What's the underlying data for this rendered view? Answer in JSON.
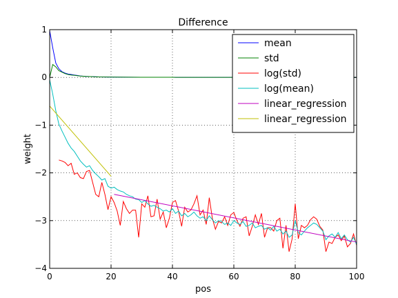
{
  "chart_data": {
    "type": "line",
    "title": "Difference",
    "xlabel": "pos",
    "ylabel": "weight",
    "xlim": [
      0,
      100
    ],
    "ylim": [
      -4,
      1
    ],
    "xticks": [
      0,
      20,
      40,
      60,
      80,
      100
    ],
    "yticks": [
      -4,
      -3,
      -2,
      -1,
      0,
      1
    ],
    "grid": true,
    "legend_position": "top-right",
    "series": [
      {
        "name": "mean",
        "color": "#0000ff",
        "points": [
          [
            0,
            0.98
          ],
          [
            1,
            0.62
          ],
          [
            2,
            0.3
          ],
          [
            3,
            0.18
          ],
          [
            4,
            0.12
          ],
          [
            5,
            0.09
          ],
          [
            6,
            0.07
          ],
          [
            7,
            0.06
          ],
          [
            8,
            0.05
          ],
          [
            9,
            0.04
          ],
          [
            10,
            0.03
          ],
          [
            12,
            0.02
          ],
          [
            14,
            0.015
          ],
          [
            16,
            0.01
          ],
          [
            20,
            0.006
          ],
          [
            25,
            0.004
          ],
          [
            30,
            0.003
          ],
          [
            40,
            0.002
          ],
          [
            50,
            0.001
          ],
          [
            60,
            0.001
          ],
          [
            70,
            0.0
          ],
          [
            80,
            0.0
          ],
          [
            90,
            0.0
          ],
          [
            100,
            0.0
          ]
        ]
      },
      {
        "name": "std",
        "color": "#008000",
        "points": [
          [
            0,
            0.0
          ],
          [
            1,
            0.27
          ],
          [
            2,
            0.22
          ],
          [
            3,
            0.14
          ],
          [
            4,
            0.11
          ],
          [
            5,
            0.08
          ],
          [
            6,
            0.06
          ],
          [
            7,
            0.05
          ],
          [
            8,
            0.045
          ],
          [
            9,
            0.035
          ],
          [
            10,
            0.028
          ],
          [
            12,
            0.02
          ],
          [
            14,
            0.015
          ],
          [
            16,
            0.01
          ],
          [
            20,
            0.006
          ],
          [
            25,
            0.004
          ],
          [
            30,
            0.003
          ],
          [
            40,
            0.002
          ],
          [
            50,
            0.001
          ],
          [
            60,
            0.001
          ],
          [
            70,
            0.0
          ],
          [
            80,
            0.0
          ],
          [
            90,
            0.0
          ],
          [
            100,
            0.0
          ]
        ]
      },
      {
        "name": "log(std)",
        "color": "#ff0000",
        "points": [
          [
            3,
            -1.73
          ],
          [
            4,
            -1.75
          ],
          [
            5,
            -1.78
          ],
          [
            6,
            -1.85
          ],
          [
            7,
            -1.8
          ],
          [
            8,
            -2.03
          ],
          [
            9,
            -2.0
          ],
          [
            10,
            -2.1
          ],
          [
            11,
            -2.12
          ],
          [
            12,
            -1.97
          ],
          [
            13,
            -1.95
          ],
          [
            14,
            -2.2
          ],
          [
            15,
            -2.45
          ],
          [
            16,
            -2.5
          ],
          [
            17,
            -2.2
          ],
          [
            18,
            -2.45
          ],
          [
            19,
            -2.77
          ],
          [
            20,
            -2.5
          ],
          [
            21,
            -2.62
          ],
          [
            22,
            -2.8
          ],
          [
            23,
            -3.1
          ],
          [
            24,
            -2.6
          ],
          [
            25,
            -2.75
          ],
          [
            26,
            -2.85
          ],
          [
            27,
            -2.78
          ],
          [
            28,
            -2.78
          ],
          [
            29,
            -3.35
          ],
          [
            30,
            -2.65
          ],
          [
            31,
            -2.72
          ],
          [
            32,
            -2.48
          ],
          [
            33,
            -2.92
          ],
          [
            34,
            -2.9
          ],
          [
            35,
            -2.55
          ],
          [
            36,
            -2.97
          ],
          [
            37,
            -2.82
          ],
          [
            38,
            -3.15
          ],
          [
            39,
            -2.95
          ],
          [
            40,
            -2.62
          ],
          [
            41,
            -2.58
          ],
          [
            42,
            -2.8
          ],
          [
            43,
            -3.12
          ],
          [
            44,
            -2.72
          ],
          [
            45,
            -2.82
          ],
          [
            46,
            -2.78
          ],
          [
            47,
            -2.65
          ],
          [
            48,
            -2.48
          ],
          [
            49,
            -2.88
          ],
          [
            50,
            -2.78
          ],
          [
            51,
            -3.08
          ],
          [
            52,
            -2.52
          ],
          [
            53,
            -2.95
          ],
          [
            54,
            -3.18
          ],
          [
            55,
            -3.02
          ],
          [
            56,
            -3.05
          ],
          [
            57,
            -2.92
          ],
          [
            58,
            -3.1
          ],
          [
            59,
            -2.88
          ],
          [
            60,
            -2.83
          ],
          [
            61,
            -3.0
          ],
          [
            62,
            -3.12
          ],
          [
            63,
            -2.95
          ],
          [
            64,
            -2.92
          ],
          [
            65,
            -3.32
          ],
          [
            66,
            -3.12
          ],
          [
            67,
            -2.88
          ],
          [
            68,
            -3.08
          ],
          [
            69,
            -2.85
          ],
          [
            70,
            -3.35
          ],
          [
            71,
            -3.15
          ],
          [
            72,
            -3.15
          ],
          [
            73,
            -3.22
          ],
          [
            74,
            -3.0
          ],
          [
            75,
            -2.95
          ],
          [
            76,
            -3.58
          ],
          [
            77,
            -3.1
          ],
          [
            78,
            -3.65
          ],
          [
            79,
            -3.38
          ],
          [
            80,
            -2.65
          ],
          [
            81,
            -3.38
          ],
          [
            82,
            -3.1
          ],
          [
            83,
            -3.15
          ],
          [
            84,
            -3.1
          ],
          [
            85,
            -2.98
          ],
          [
            86,
            -2.92
          ],
          [
            87,
            -2.97
          ],
          [
            88,
            -3.12
          ],
          [
            89,
            -3.2
          ],
          [
            90,
            -3.65
          ],
          [
            91,
            -3.45
          ],
          [
            92,
            -3.48
          ],
          [
            93,
            -3.35
          ],
          [
            94,
            -3.3
          ],
          [
            95,
            -3.42
          ],
          [
            96,
            -3.32
          ],
          [
            97,
            -3.55
          ],
          [
            98,
            -3.48
          ],
          [
            99,
            -3.28
          ],
          [
            100,
            -3.52
          ]
        ]
      },
      {
        "name": "log(mean)",
        "color": "#00bfbf",
        "points": [
          [
            0,
            -0.05
          ],
          [
            1,
            -0.35
          ],
          [
            2,
            -0.7
          ],
          [
            3,
            -0.98
          ],
          [
            4,
            -1.12
          ],
          [
            5,
            -1.25
          ],
          [
            6,
            -1.38
          ],
          [
            7,
            -1.48
          ],
          [
            8,
            -1.55
          ],
          [
            9,
            -1.65
          ],
          [
            10,
            -1.75
          ],
          [
            11,
            -1.82
          ],
          [
            12,
            -1.88
          ],
          [
            13,
            -1.85
          ],
          [
            14,
            -1.95
          ],
          [
            15,
            -2.02
          ],
          [
            16,
            -2.08
          ],
          [
            17,
            -2.15
          ],
          [
            18,
            -2.12
          ],
          [
            19,
            -2.28
          ],
          [
            20,
            -2.32
          ],
          [
            21,
            -2.3
          ],
          [
            22,
            -2.35
          ],
          [
            23,
            -2.38
          ],
          [
            24,
            -2.4
          ],
          [
            25,
            -2.45
          ],
          [
            26,
            -2.48
          ],
          [
            27,
            -2.5
          ],
          [
            28,
            -2.55
          ],
          [
            29,
            -2.56
          ],
          [
            30,
            -2.62
          ],
          [
            31,
            -2.58
          ],
          [
            32,
            -2.65
          ],
          [
            33,
            -2.7
          ],
          [
            34,
            -2.68
          ],
          [
            35,
            -2.72
          ],
          [
            36,
            -2.75
          ],
          [
            37,
            -2.8
          ],
          [
            38,
            -2.78
          ],
          [
            39,
            -2.82
          ],
          [
            40,
            -2.75
          ],
          [
            41,
            -2.85
          ],
          [
            42,
            -2.8
          ],
          [
            43,
            -2.9
          ],
          [
            44,
            -2.85
          ],
          [
            45,
            -2.92
          ],
          [
            46,
            -2.88
          ],
          [
            47,
            -2.82
          ],
          [
            48,
            -2.9
          ],
          [
            49,
            -2.95
          ],
          [
            50,
            -2.92
          ],
          [
            51,
            -3.0
          ],
          [
            52,
            -2.9
          ],
          [
            53,
            -2.98
          ],
          [
            54,
            -3.05
          ],
          [
            55,
            -3.0
          ],
          [
            56,
            -3.02
          ],
          [
            57,
            -3.08
          ],
          [
            58,
            -3.05
          ],
          [
            59,
            -3.1
          ],
          [
            60,
            -3.0
          ],
          [
            61,
            -3.05
          ],
          [
            62,
            -3.08
          ],
          [
            63,
            -3.02
          ],
          [
            64,
            -3.12
          ],
          [
            65,
            -3.1
          ],
          [
            66,
            -3.05
          ],
          [
            67,
            -3.15
          ],
          [
            68,
            -3.12
          ],
          [
            69,
            -3.1
          ],
          [
            70,
            -3.18
          ],
          [
            71,
            -3.15
          ],
          [
            72,
            -3.2
          ],
          [
            73,
            -3.12
          ],
          [
            74,
            -3.22
          ],
          [
            75,
            -3.18
          ],
          [
            76,
            -3.28
          ],
          [
            77,
            -3.22
          ],
          [
            78,
            -3.35
          ],
          [
            79,
            -3.3
          ],
          [
            80,
            -3.0
          ],
          [
            81,
            -3.25
          ],
          [
            82,
            -3.3
          ],
          [
            83,
            -3.22
          ],
          [
            84,
            -3.15
          ],
          [
            85,
            -3.1
          ],
          [
            86,
            -3.05
          ],
          [
            87,
            -3.08
          ],
          [
            88,
            -3.15
          ],
          [
            89,
            -3.22
          ],
          [
            90,
            -3.4
          ],
          [
            91,
            -3.32
          ],
          [
            92,
            -3.28
          ],
          [
            93,
            -3.35
          ],
          [
            94,
            -3.25
          ],
          [
            95,
            -3.38
          ],
          [
            96,
            -3.3
          ],
          [
            97,
            -3.4
          ],
          [
            98,
            -3.45
          ],
          [
            99,
            -3.35
          ],
          [
            100,
            -3.5
          ]
        ]
      },
      {
        "name": "linear_regression",
        "color": "#bf00bf",
        "points": [
          [
            21,
            -2.45
          ],
          [
            100,
            -3.45
          ]
        ]
      },
      {
        "name": "linear_regression",
        "color": "#bfbf00",
        "points": [
          [
            0,
            -0.6
          ],
          [
            20,
            -2.07
          ]
        ]
      }
    ]
  }
}
